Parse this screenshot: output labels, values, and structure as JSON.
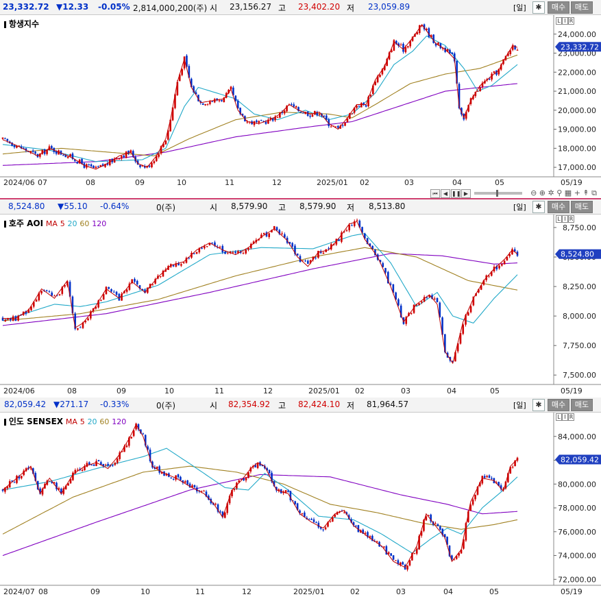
{
  "panels": [
    {
      "id": "hsi",
      "header": {
        "price": "23,332.72",
        "change": "▼12.33",
        "change_pct": "-0.05%",
        "volume": "2,814,000,200(주)",
        "open_label": "시",
        "open": "23,156.27",
        "high_label": "고",
        "high": "23,402.20",
        "low_label": "저",
        "low": "23,059.89",
        "period_button": "[일]",
        "gear_icon": "gear-icon",
        "buy_button": "매수",
        "sell_button": "매도"
      },
      "title": "항생지수",
      "lir": [
        "L",
        "I",
        "R"
      ],
      "last_price_tag": "23,332.72",
      "x_labels": [
        "2024/06",
        "07",
        "08",
        "09",
        "10",
        "11",
        "12",
        "2025/01",
        "02",
        "03",
        "04",
        "05"
      ],
      "x_end_label": "05/19"
    },
    {
      "id": "aoi",
      "header": {
        "price": "8,524.80",
        "change": "▼55.10",
        "change_pct": "-0.64%",
        "volume": "0(주)",
        "open_label": "시",
        "open": "8,579.90",
        "high_label": "고",
        "high": "8,579.90",
        "low_label": "저",
        "low": "8,513.80",
        "period_button": "[일]",
        "gear_icon": "gear-icon",
        "buy_button": "매수",
        "sell_button": "매도"
      },
      "title": "호주 AOI",
      "ma_legend": {
        "label": "MA",
        "periods": [
          "5",
          "20",
          "60",
          "120"
        ]
      },
      "lir": [
        "L",
        "I",
        "R"
      ],
      "last_price_tag": "8,524.80",
      "x_labels": [
        "2024/06",
        "08",
        "09",
        "10",
        "11",
        "12",
        "2025/01",
        "02",
        "03",
        "04",
        "05"
      ],
      "x_end_label": "05/19"
    },
    {
      "id": "sensex",
      "header": {
        "price": "82,059.42",
        "change": "▼271.17",
        "change_pct": "-0.33%",
        "volume": "0(주)",
        "open_label": "시",
        "open": "82,354.92",
        "high_label": "고",
        "high": "82,424.10",
        "low_label": "저",
        "low": "81,964.57",
        "period_button": "[일]",
        "gear_icon": "gear-icon",
        "buy_button": "매수",
        "sell_button": "매도"
      },
      "title": "인도 SENSEX",
      "ma_legend": {
        "label": "MA",
        "periods": [
          "5",
          "20",
          "60",
          "120"
        ]
      },
      "lir": [
        "L",
        "I",
        "R"
      ],
      "last_price_tag": "82,059.42",
      "x_labels": [
        "2024/07",
        "08",
        "09",
        "10",
        "11",
        "12",
        "2025/01",
        "02",
        "03",
        "04",
        "05"
      ],
      "x_end_label": "05/19"
    }
  ],
  "colors": {
    "up": "#d00000",
    "down": "#0030c8",
    "ma5": "#c00000",
    "ma20": "#20a8c8",
    "ma60": "#a08020",
    "ma120": "#8000c0",
    "tag_bg": "#2040c0"
  },
  "chart_data": [
    {
      "type": "candlestick",
      "title": "항생지수",
      "y_ticks": [
        17000,
        18000,
        19000,
        20000,
        21000,
        22000,
        23000,
        24000
      ],
      "ylim": [
        16500,
        25000
      ],
      "x_labels": [
        "2024/06",
        "07",
        "08",
        "09",
        "10",
        "11",
        "12",
        "2025/01",
        "02",
        "03",
        "04",
        "05"
      ],
      "last": 23332.72,
      "path": [
        [
          0,
          18450
        ],
        [
          5,
          18200
        ],
        [
          10,
          17900
        ],
        [
          15,
          17600
        ],
        [
          20,
          18000
        ],
        [
          25,
          17750
        ],
        [
          30,
          17500
        ],
        [
          35,
          17100
        ],
        [
          40,
          16900
        ],
        [
          45,
          17200
        ],
        [
          50,
          17600
        ],
        [
          55,
          17800
        ],
        [
          58,
          17200
        ],
        [
          62,
          17000
        ],
        [
          66,
          17600
        ],
        [
          70,
          18500
        ],
        [
          72,
          19500
        ],
        [
          75,
          21500
        ],
        [
          78,
          22700
        ],
        [
          81,
          21200
        ],
        [
          85,
          20400
        ],
        [
          90,
          20500
        ],
        [
          95,
          20600
        ],
        [
          98,
          21100
        ],
        [
          101,
          20000
        ],
        [
          105,
          19400
        ],
        [
          110,
          19300
        ],
        [
          115,
          19500
        ],
        [
          119,
          19800
        ],
        [
          123,
          20300
        ],
        [
          127,
          20000
        ],
        [
          132,
          19800
        ],
        [
          136,
          19900
        ],
        [
          140,
          19300
        ],
        [
          144,
          19000
        ],
        [
          148,
          19600
        ],
        [
          152,
          20300
        ],
        [
          156,
          20300
        ],
        [
          160,
          21600
        ],
        [
          164,
          22300
        ],
        [
          168,
          23600
        ],
        [
          172,
          23200
        ],
        [
          176,
          23800
        ],
        [
          180,
          24500
        ],
        [
          183,
          24000
        ],
        [
          186,
          23500
        ],
        [
          190,
          23200
        ],
        [
          194,
          22700
        ],
        [
          196,
          20200
        ],
        [
          198,
          19600
        ],
        [
          201,
          20500
        ],
        [
          205,
          21300
        ],
        [
          209,
          21700
        ],
        [
          213,
          22100
        ],
        [
          216,
          22800
        ],
        [
          219,
          23400
        ],
        [
          221,
          23300
        ]
      ],
      "ma20": [
        [
          0,
          18200
        ],
        [
          20,
          17900
        ],
        [
          40,
          17300
        ],
        [
          60,
          17400
        ],
        [
          70,
          18000
        ],
        [
          78,
          20200
        ],
        [
          84,
          21200
        ],
        [
          92,
          20900
        ],
        [
          100,
          20600
        ],
        [
          108,
          19800
        ],
        [
          118,
          19500
        ],
        [
          130,
          20000
        ],
        [
          140,
          19500
        ],
        [
          150,
          19800
        ],
        [
          160,
          20900
        ],
        [
          168,
          22400
        ],
        [
          176,
          23100
        ],
        [
          182,
          23900
        ],
        [
          190,
          23400
        ],
        [
          198,
          22200
        ],
        [
          204,
          21000
        ],
        [
          210,
          21300
        ],
        [
          216,
          21900
        ],
        [
          221,
          22400
        ]
      ],
      "ma60": [
        [
          0,
          17700
        ],
        [
          25,
          18000
        ],
        [
          45,
          17800
        ],
        [
          65,
          17600
        ],
        [
          80,
          18500
        ],
        [
          100,
          19500
        ],
        [
          120,
          19900
        ],
        [
          140,
          19800
        ],
        [
          150,
          19600
        ],
        [
          160,
          20300
        ],
        [
          175,
          21400
        ],
        [
          190,
          21900
        ],
        [
          205,
          22200
        ],
        [
          221,
          22900
        ]
      ],
      "ma120": [
        [
          0,
          17100
        ],
        [
          40,
          17300
        ],
        [
          70,
          17800
        ],
        [
          100,
          18600
        ],
        [
          130,
          19100
        ],
        [
          150,
          19400
        ],
        [
          170,
          20200
        ],
        [
          190,
          21000
        ],
        [
          205,
          21200
        ],
        [
          221,
          21400
        ]
      ]
    },
    {
      "type": "candlestick",
      "title": "호주 AOI",
      "y_ticks": [
        7500,
        7750,
        8000,
        8250,
        8500,
        8750
      ],
      "ylim": [
        7420,
        8860
      ],
      "x_labels": [
        "2024/06",
        "08",
        "09",
        "10",
        "11",
        "12",
        "2025/01",
        "02",
        "03",
        "04",
        "05"
      ],
      "last": 8524.8,
      "path": [
        [
          0,
          7980
        ],
        [
          5,
          7980
        ],
        [
          10,
          8050
        ],
        [
          15,
          8230
        ],
        [
          20,
          8150
        ],
        [
          25,
          8300
        ],
        [
          28,
          7900
        ],
        [
          31,
          7940
        ],
        [
          35,
          8050
        ],
        [
          40,
          8230
        ],
        [
          45,
          8150
        ],
        [
          50,
          8290
        ],
        [
          55,
          8200
        ],
        [
          60,
          8330
        ],
        [
          65,
          8430
        ],
        [
          70,
          8460
        ],
        [
          75,
          8560
        ],
        [
          80,
          8620
        ],
        [
          85,
          8560
        ],
        [
          90,
          8520
        ],
        [
          95,
          8580
        ],
        [
          100,
          8670
        ],
        [
          105,
          8740
        ],
        [
          110,
          8640
        ],
        [
          114,
          8500
        ],
        [
          118,
          8420
        ],
        [
          122,
          8540
        ],
        [
          126,
          8560
        ],
        [
          130,
          8660
        ],
        [
          134,
          8780
        ],
        [
          137,
          8800
        ],
        [
          140,
          8650
        ],
        [
          145,
          8500
        ],
        [
          150,
          8250
        ],
        [
          155,
          7950
        ],
        [
          160,
          8100
        ],
        [
          165,
          8180
        ],
        [
          168,
          8100
        ],
        [
          171,
          7700
        ],
        [
          174,
          7600
        ],
        [
          178,
          7950
        ],
        [
          182,
          8150
        ],
        [
          186,
          8300
        ],
        [
          190,
          8400
        ],
        [
          194,
          8480
        ],
        [
          197,
          8560
        ],
        [
          199,
          8525
        ]
      ],
      "ma20": [
        [
          0,
          7960
        ],
        [
          20,
          8100
        ],
        [
          30,
          8080
        ],
        [
          40,
          8120
        ],
        [
          60,
          8260
        ],
        [
          80,
          8520
        ],
        [
          100,
          8580
        ],
        [
          120,
          8570
        ],
        [
          135,
          8680
        ],
        [
          140,
          8700
        ],
        [
          150,
          8450
        ],
        [
          160,
          8080
        ],
        [
          168,
          8200
        ],
        [
          174,
          8000
        ],
        [
          182,
          7940
        ],
        [
          190,
          8150
        ],
        [
          199,
          8350
        ]
      ],
      "ma60": [
        [
          0,
          7960
        ],
        [
          30,
          8020
        ],
        [
          60,
          8140
        ],
        [
          90,
          8340
        ],
        [
          120,
          8500
        ],
        [
          140,
          8580
        ],
        [
          160,
          8500
        ],
        [
          180,
          8300
        ],
        [
          199,
          8220
        ]
      ],
      "ma120": [
        [
          0,
          7920
        ],
        [
          40,
          8020
        ],
        [
          80,
          8200
        ],
        [
          120,
          8400
        ],
        [
          150,
          8530
        ],
        [
          170,
          8510
        ],
        [
          190,
          8440
        ],
        [
          199,
          8450
        ]
      ]
    },
    {
      "type": "candlestick",
      "title": "인도 SENSEX",
      "y_ticks": [
        72000,
        74000,
        76000,
        78000,
        80000,
        82000,
        84000
      ],
      "ylim": [
        71500,
        86000
      ],
      "x_labels": [
        "2024/07",
        "08",
        "09",
        "10",
        "11",
        "12",
        "2025/01",
        "02",
        "03",
        "04",
        "05"
      ],
      "last": 82059.42,
      "path": [
        [
          0,
          79500
        ],
        [
          6,
          80500
        ],
        [
          12,
          81500
        ],
        [
          16,
          79200
        ],
        [
          20,
          80500
        ],
        [
          25,
          79200
        ],
        [
          30,
          80800
        ],
        [
          35,
          81500
        ],
        [
          40,
          81800
        ],
        [
          45,
          81300
        ],
        [
          50,
          82500
        ],
        [
          54,
          83800
        ],
        [
          57,
          85000
        ],
        [
          60,
          84000
        ],
        [
          64,
          81500
        ],
        [
          68,
          81000
        ],
        [
          74,
          80500
        ],
        [
          80,
          79800
        ],
        [
          86,
          79200
        ],
        [
          90,
          78400
        ],
        [
          94,
          77200
        ],
        [
          98,
          79500
        ],
        [
          102,
          80300
        ],
        [
          106,
          81300
        ],
        [
          109,
          81800
        ],
        [
          112,
          81500
        ],
        [
          117,
          79500
        ],
        [
          122,
          79200
        ],
        [
          127,
          77500
        ],
        [
          132,
          76800
        ],
        [
          137,
          76300
        ],
        [
          142,
          77500
        ],
        [
          146,
          77800
        ],
        [
          150,
          76500
        ],
        [
          156,
          75600
        ],
        [
          162,
          74800
        ],
        [
          167,
          73500
        ],
        [
          172,
          73000
        ],
        [
          177,
          74800
        ],
        [
          181,
          77500
        ],
        [
          185,
          76500
        ],
        [
          189,
          75500
        ],
        [
          192,
          73500
        ],
        [
          196,
          74500
        ],
        [
          200,
          78500
        ],
        [
          205,
          80500
        ],
        [
          210,
          80300
        ],
        [
          214,
          79400
        ],
        [
          217,
          81500
        ],
        [
          220,
          82100
        ]
      ],
      "ma20": [
        [
          0,
          79500
        ],
        [
          20,
          80200
        ],
        [
          40,
          81300
        ],
        [
          60,
          82300
        ],
        [
          70,
          83000
        ],
        [
          80,
          81700
        ],
        [
          95,
          79700
        ],
        [
          105,
          79500
        ],
        [
          112,
          80900
        ],
        [
          122,
          79500
        ],
        [
          135,
          77300
        ],
        [
          150,
          77000
        ],
        [
          162,
          75800
        ],
        [
          175,
          74200
        ],
        [
          183,
          75400
        ],
        [
          190,
          76300
        ],
        [
          196,
          75800
        ],
        [
          205,
          78000
        ],
        [
          214,
          79500
        ],
        [
          220,
          80600
        ]
      ],
      "ma60": [
        [
          0,
          75800
        ],
        [
          30,
          78900
        ],
        [
          60,
          81000
        ],
        [
          80,
          81500
        ],
        [
          100,
          81000
        ],
        [
          120,
          80000
        ],
        [
          140,
          78300
        ],
        [
          160,
          77600
        ],
        [
          180,
          76700
        ],
        [
          196,
          76200
        ],
        [
          210,
          76600
        ],
        [
          220,
          77000
        ]
      ],
      "ma120": [
        [
          0,
          74000
        ],
        [
          40,
          76800
        ],
        [
          80,
          79500
        ],
        [
          110,
          80800
        ],
        [
          140,
          80600
        ],
        [
          170,
          79100
        ],
        [
          190,
          78300
        ],
        [
          205,
          77500
        ],
        [
          220,
          77700
        ]
      ]
    }
  ]
}
